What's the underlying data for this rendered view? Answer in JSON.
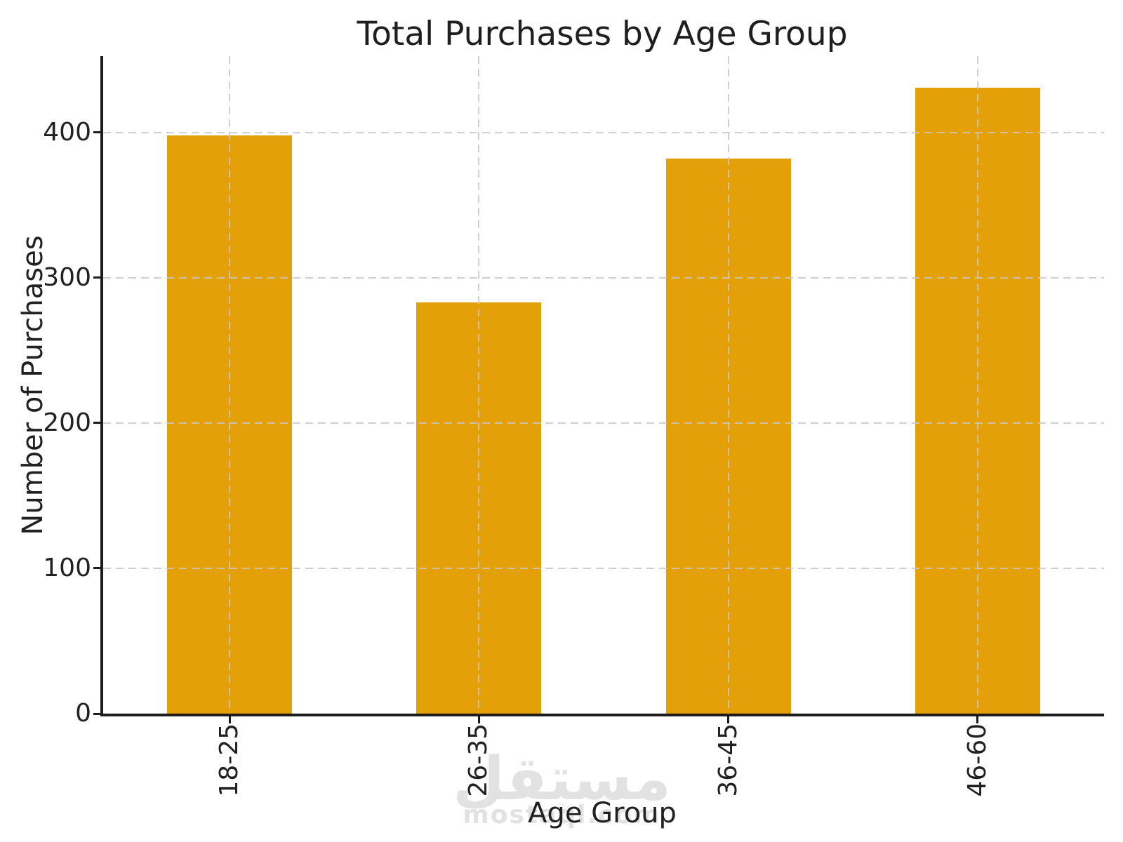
{
  "chart_data": {
    "type": "bar",
    "title": "Total Purchases by Age Group",
    "xlabel": "Age Group",
    "ylabel": "Number of Purchases",
    "categories": [
      "18-25",
      "26-35",
      "36-45",
      "46-60"
    ],
    "values": [
      398,
      283,
      382,
      431
    ],
    "yticks": [
      0,
      100,
      200,
      300,
      400
    ],
    "ylim": [
      0,
      452.5
    ],
    "bar_width_data_units": 0.5,
    "grid": "dashed light-gray horizontal lines at yticks and vertical lines at bar centers, drawn above bars",
    "legend_position": "none"
  },
  "colors": {
    "bar": "#e3a008",
    "grid": "#c8c8c8",
    "spine": "#1c1c1c",
    "text": "#212121",
    "watermark": "#e2e2e2",
    "background": "#ffffff"
  },
  "watermark": {
    "arabic_text": "مستقل",
    "latin_text": "mostaql.com"
  }
}
